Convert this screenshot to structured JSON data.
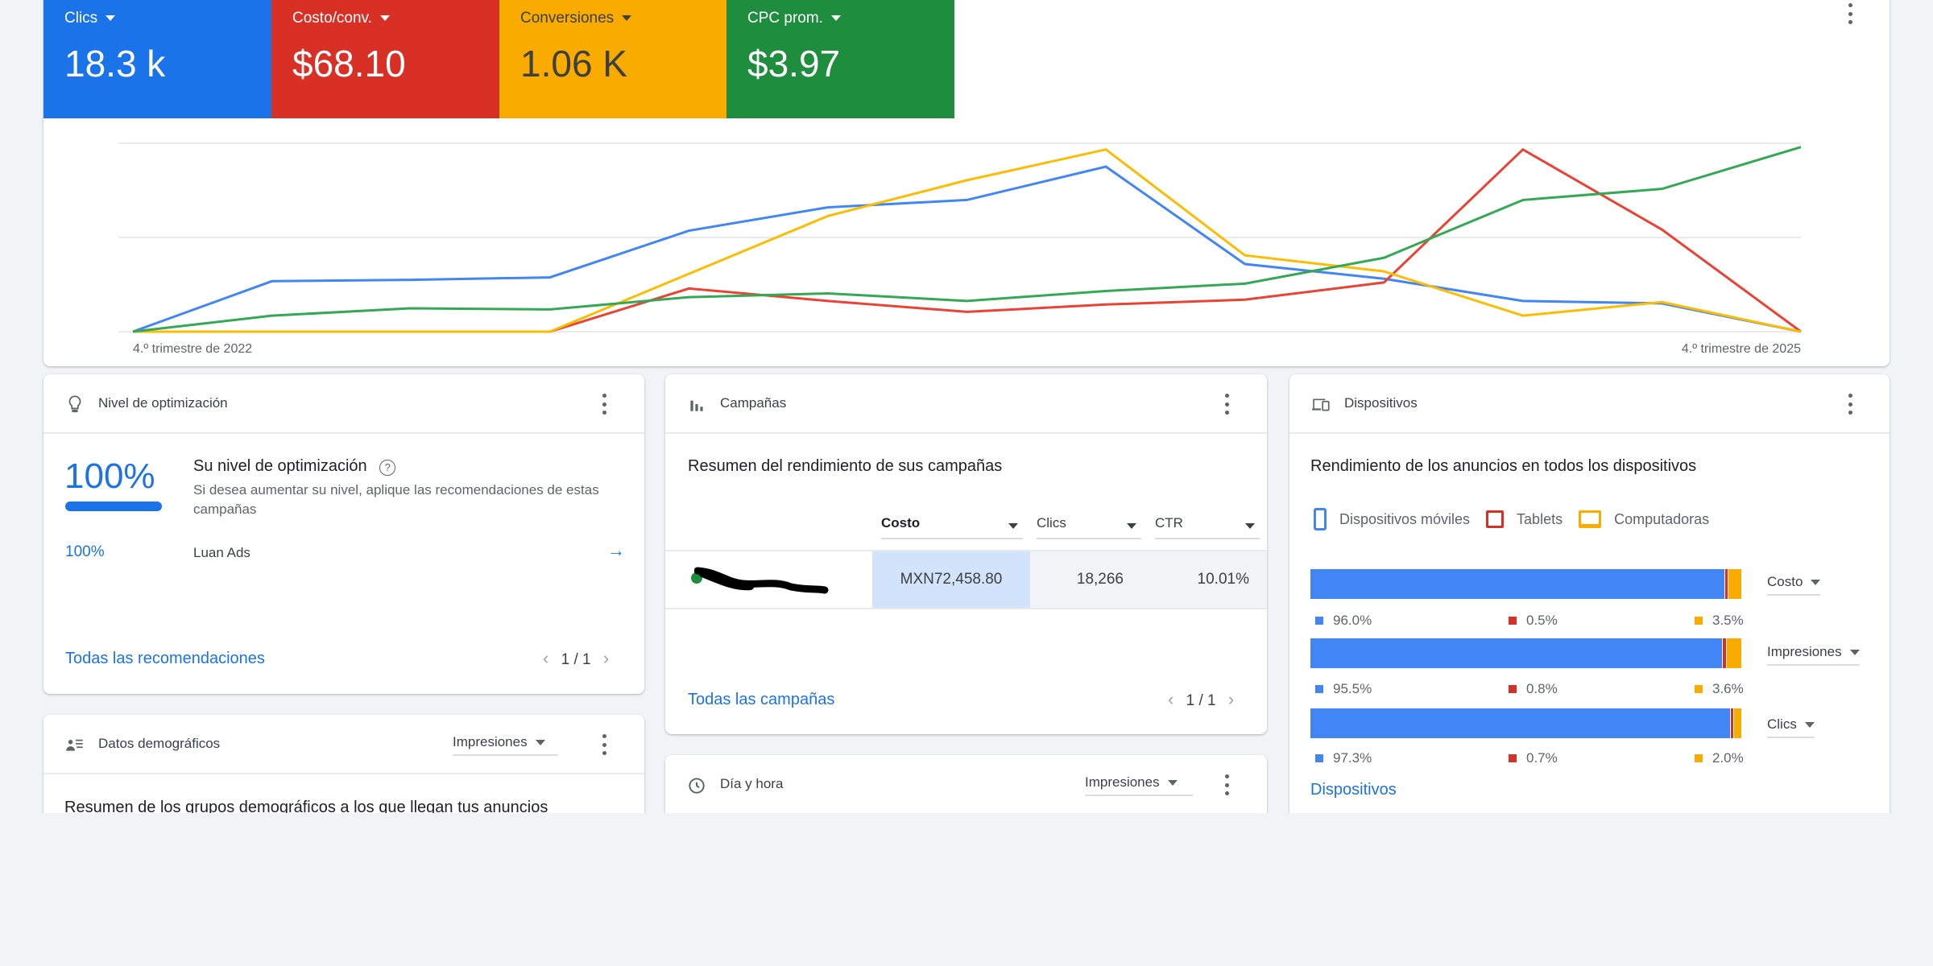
{
  "metrics": [
    {
      "label": "Clics",
      "value": "18.3 k",
      "color": "#1a73e8"
    },
    {
      "label": "Costo/conv.",
      "value": "$68.10",
      "color": "#d93025"
    },
    {
      "label": "Conversiones",
      "value": "1.06 K",
      "color": "#f9ab00"
    },
    {
      "label": "CPC prom.",
      "value": "$3.97",
      "color": "#1e8e3e"
    }
  ],
  "chart_data": {
    "type": "line",
    "xlabel_start": "4.º trimestre de 2022",
    "xlabel_end": "4.º trimestre de 2025",
    "grid": true,
    "y_axis": "relative (no tick labels shown)",
    "ylim": [
      0,
      100
    ],
    "series": [
      {
        "metric": "Clics",
        "color": "#4285f4",
        "values": [
          0,
          26.8,
          27.5,
          28.8,
          53.6,
          66,
          69.9,
          87.6,
          35.9,
          28.1,
          16.3,
          15,
          0
        ]
      },
      {
        "metric": "Costo/conv.",
        "color": "#ea4335",
        "values": [
          0,
          0,
          0,
          0,
          22.9,
          16.3,
          10.5,
          14.4,
          17,
          26.1,
          96.7,
          54.2,
          0
        ]
      },
      {
        "metric": "Conversiones",
        "color": "#fbbc04",
        "values": [
          0,
          0,
          0,
          0,
          30.7,
          61.4,
          80.4,
          96.7,
          40.5,
          32,
          8.5,
          15.7,
          0
        ]
      },
      {
        "metric": "CPC prom.",
        "color": "#34a853",
        "values": [
          0,
          8.5,
          12.4,
          11.8,
          18.3,
          20.3,
          16.3,
          21.6,
          25.5,
          39.2,
          69.9,
          75.8,
          98
        ]
      }
    ]
  },
  "optimization": {
    "header": "Nivel de optimización",
    "score": "100%",
    "score_fraction": 1.0,
    "title": "Su nivel de optimización",
    "description": "Si desea aumentar su nivel, aplique las recomendaciones de estas campañas",
    "row_score": "100%",
    "row_account": "Luan Ads",
    "link": "Todas las recomendaciones",
    "pager": "1 / 1"
  },
  "campaigns": {
    "header": "Campañas",
    "title": "Resumen del rendimiento de sus campañas",
    "columns": [
      "Costo",
      "Clics",
      "CTR"
    ],
    "rows": [
      {
        "status_color": "#1e8e3e",
        "cost": "MXN72,458.80",
        "clicks": "18,266",
        "ctr": "10.01%"
      }
    ],
    "link": "Todas las campañas",
    "pager": "1 / 1"
  },
  "devices": {
    "header": "Dispositivos",
    "title": "Rendimiento de los anuncios en todos los dispositivos",
    "legend": [
      {
        "label": "Dispositivos móviles",
        "color": "#4285f4",
        "icon": "phone-icon"
      },
      {
        "label": "Tablets",
        "color": "#d93025",
        "icon": "tablet-icon"
      },
      {
        "label": "Computadoras",
        "color": "#f9ab00",
        "icon": "laptop-icon"
      }
    ],
    "bars": [
      {
        "metric": "Costo",
        "mobile": 96.0,
        "tablet": 0.5,
        "computer": 3.5,
        "mobile_label": "96.0%",
        "tablet_label": "0.5%",
        "computer_label": "3.5%"
      },
      {
        "metric": "Impresiones",
        "mobile": 95.5,
        "tablet": 0.8,
        "computer": 3.6,
        "mobile_label": "95.5%",
        "tablet_label": "0.8%",
        "computer_label": "3.6%"
      },
      {
        "metric": "Clics",
        "mobile": 97.3,
        "tablet": 0.7,
        "computer": 2.0,
        "mobile_label": "97.3%",
        "tablet_label": "0.7%",
        "computer_label": "2.0%"
      }
    ],
    "link": "Dispositivos"
  },
  "demographics": {
    "header": "Datos demográficos",
    "dropdown": "Impresiones",
    "title": "Resumen de los grupos demográficos a los que llegan tus anuncios"
  },
  "dayhour": {
    "header": "Día y hora",
    "dropdown": "Impresiones"
  }
}
